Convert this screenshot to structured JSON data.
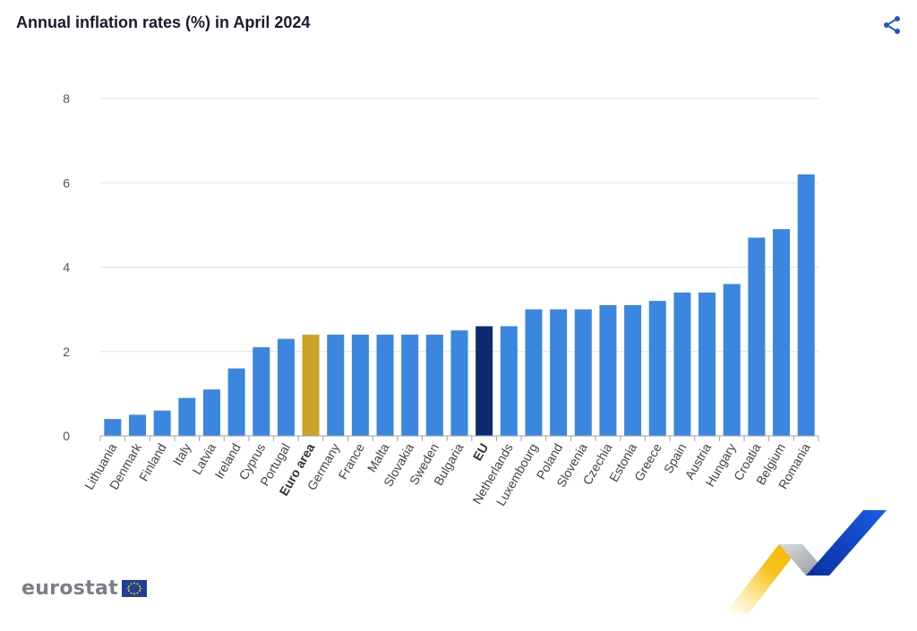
{
  "header": {
    "title": "Annual inflation rates (%) in April 2024",
    "share_icon": "share-icon"
  },
  "brand": {
    "logo_text": "eurostat",
    "flag_icon": "eu-flag-icon"
  },
  "colors": {
    "default_bar": "#3b86de",
    "euro_area_bar": "#c9a227",
    "eu_bar": "#0b2a6f",
    "grid": "#dde3ea",
    "axis": "#9aa3ad",
    "accent": "#1a56c9"
  },
  "chart_data": {
    "type": "bar",
    "title": "Annual inflation rates (%) in April 2024",
    "xlabel": "",
    "ylabel": "",
    "ylim": [
      0,
      8
    ],
    "yticks": [
      0,
      2,
      4,
      6,
      8
    ],
    "grid": true,
    "categories": [
      "Lithuania",
      "Denmark",
      "Finland",
      "Italy",
      "Latvia",
      "Ireland",
      "Cyprus",
      "Portugal",
      "Euro area",
      "Germany",
      "France",
      "Malta",
      "Slovakia",
      "Sweden",
      "Bulgaria",
      "EU",
      "Netherlands",
      "Luxembourg",
      "Poland",
      "Slovenia",
      "Czechia",
      "Estonia",
      "Greece",
      "Spain",
      "Austria",
      "Hungary",
      "Croatia",
      "Belgium",
      "Romania"
    ],
    "values": [
      0.4,
      0.5,
      0.6,
      0.9,
      1.1,
      1.6,
      2.1,
      2.3,
      2.4,
      2.4,
      2.4,
      2.4,
      2.4,
      2.4,
      2.5,
      2.6,
      2.6,
      3.0,
      3.0,
      3.0,
      3.1,
      3.1,
      3.2,
      3.4,
      3.4,
      3.6,
      4.7,
      4.9,
      6.2
    ],
    "highlighted": {
      "Euro area": "#c9a227",
      "EU": "#0b2a6f"
    },
    "bold_labels": [
      "Euro area",
      "EU"
    ]
  }
}
